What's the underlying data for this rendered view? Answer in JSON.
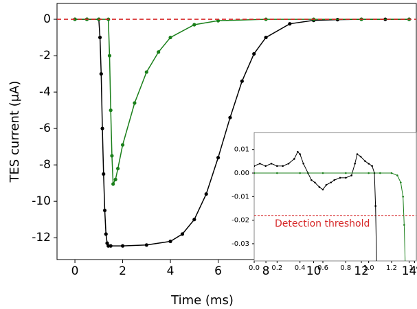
{
  "chart_data": [
    {
      "type": "line",
      "xlabel": "Time (ms)",
      "ylabel": "TES current (μA)",
      "xlim": [
        -0.75,
        14.3
      ],
      "ylim": [
        -13.2,
        0.87
      ],
      "xticks": [
        0,
        2,
        4,
        6,
        8,
        10,
        12,
        14
      ],
      "yticks": [
        0,
        -2,
        -4,
        -6,
        -8,
        -10,
        -12
      ],
      "reference_line": {
        "value": 0,
        "color": "#d62728"
      },
      "series": [
        {
          "color": "#000000",
          "x": [
            0,
            0.5,
            1.0,
            1.05,
            1.1,
            1.15,
            1.2,
            1.25,
            1.3,
            1.35,
            1.4,
            1.5,
            2,
            3,
            4,
            4.5,
            5,
            5.5,
            6,
            6.5,
            7,
            7.5,
            8,
            9,
            10,
            11,
            12,
            13,
            14
          ],
          "values": [
            0,
            0,
            0,
            -1,
            -3,
            -6,
            -8.5,
            -10.5,
            -11.8,
            -12.3,
            -12.45,
            -12.45,
            -12.45,
            -12.4,
            -12.2,
            -11.8,
            -11,
            -9.6,
            -7.6,
            -5.4,
            -3.4,
            -1.9,
            -1.0,
            -0.25,
            -0.06,
            -0.02,
            0,
            0,
            0
          ]
        },
        {
          "color": "#1a7f1a",
          "x": [
            0,
            0.5,
            1.0,
            1.4,
            1.45,
            1.5,
            1.55,
            1.6,
            1.7,
            1.8,
            2,
            2.5,
            3,
            3.5,
            4,
            5,
            6,
            8,
            10,
            12,
            14
          ],
          "values": [
            0,
            0,
            0,
            0,
            -2,
            -5,
            -7.5,
            -9.05,
            -8.8,
            -8.2,
            -6.9,
            -4.6,
            -2.9,
            -1.8,
            -1.0,
            -0.3,
            -0.08,
            0,
            0,
            0,
            0
          ]
        }
      ]
    },
    {
      "type": "line",
      "xlim": [
        0,
        1.416
      ],
      "ylim": [
        -0.0373,
        0.0172
      ],
      "xticks": [
        {
          "value": 0,
          "label": "0.0"
        },
        0.2,
        0.4,
        0.6,
        0.8,
        {
          "value": 1,
          "label": "1.0"
        },
        1.2,
        1.4
      ],
      "yticks": [
        0.01,
        {
          "value": 0,
          "label": "0.00"
        },
        -0.01,
        -0.02,
        -0.03
      ],
      "reference_line": {
        "value": -0.018,
        "color": "#d62728",
        "label": "Detection threshold"
      },
      "series": [
        {
          "color": "#000000",
          "x": [
            0,
            0.05,
            0.1,
            0.15,
            0.2,
            0.25,
            0.3,
            0.35,
            0.38,
            0.4,
            0.43,
            0.47,
            0.5,
            0.53,
            0.57,
            0.6,
            0.63,
            0.67,
            0.7,
            0.75,
            0.8,
            0.85,
            0.88,
            0.9,
            0.93,
            0.97,
            1.0,
            1.03,
            1.05,
            1.06,
            1.07
          ],
          "values": [
            0.003,
            0.004,
            0.003,
            0.004,
            0.003,
            0.003,
            0.004,
            0.006,
            0.009,
            0.008,
            0.004,
            0,
            -0.003,
            -0.004,
            -0.006,
            -0.007,
            -0.005,
            -0.004,
            -0.003,
            -0.002,
            -0.002,
            -0.001,
            0.004,
            0.008,
            0.007,
            0.005,
            0.004,
            0.003,
            0,
            -0.014,
            -0.04
          ]
        },
        {
          "color": "#1a7f1a",
          "x": [
            0,
            0.2,
            0.4,
            0.6,
            0.8,
            1.0,
            1.1,
            1.2,
            1.25,
            1.28,
            1.3,
            1.31,
            1.32
          ],
          "values": [
            0,
            0,
            0,
            0,
            0,
            0,
            0,
            0,
            -0.001,
            -0.004,
            -0.01,
            -0.022,
            -0.04
          ]
        }
      ]
    }
  ]
}
